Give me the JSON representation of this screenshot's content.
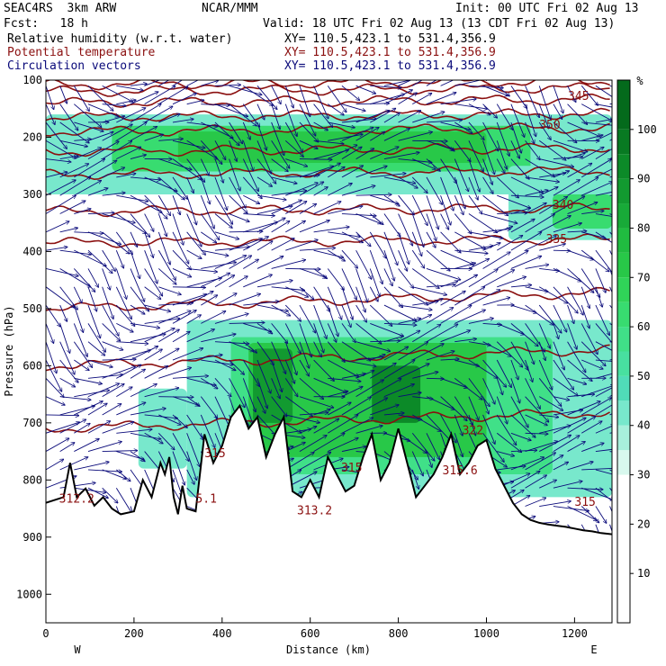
{
  "header": {
    "run": "SEAC4RS  3km ARW",
    "org": "NCAR/MMM",
    "init": "Init: 00 UTC Fri 02 Aug 13",
    "fcst": "Fcst:   18 h",
    "valid": "Valid: 18 UTC Fri 02 Aug 13 (13 CDT Fri 02 Aug 13)"
  },
  "fields": [
    {
      "label": "Relative humidity (w.r.t. water)",
      "xy": "XY= 110.5,423.1 to 531.4,356.9",
      "color": "#000000"
    },
    {
      "label": "Potential temperature",
      "xy": "XY= 110.5,423.1 to 531.4,356.9",
      "color": "#8b1010"
    },
    {
      "label": "Circulation vectors",
      "xy": "XY= 110.5,423.1 to 531.4,356.9",
      "color": "#0a0a7a"
    }
  ],
  "chart_data": {
    "type": "heatmap",
    "xlabel": "Distance (km)",
    "ylabel": "Pressure (hPa)",
    "xlim": [
      0,
      1285
    ],
    "ylim": [
      1050,
      100
    ],
    "x_ticks": [
      0,
      200,
      400,
      600,
      800,
      1000,
      1200
    ],
    "y_ticks": [
      100,
      200,
      300,
      400,
      500,
      600,
      700,
      800,
      900,
      1000
    ],
    "x_end_labels": {
      "left": "W",
      "right": "E"
    },
    "colorbar": {
      "unit": "%",
      "ticks": [
        10,
        20,
        30,
        40,
        50,
        60,
        70,
        80,
        90,
        100
      ],
      "range": [
        0,
        110
      ],
      "bands": [
        {
          "from": 0,
          "to": 30,
          "color": "#ffffff"
        },
        {
          "from": 30,
          "to": 35,
          "color": "#d8f8ee"
        },
        {
          "from": 35,
          "to": 40,
          "color": "#a8f0dc"
        },
        {
          "from": 40,
          "to": 45,
          "color": "#78e8cc"
        },
        {
          "from": 45,
          "to": 50,
          "color": "#50dcb8"
        },
        {
          "from": 50,
          "to": 55,
          "color": "#48e0a0"
        },
        {
          "from": 55,
          "to": 60,
          "color": "#40e088"
        },
        {
          "from": 60,
          "to": 65,
          "color": "#38dc70"
        },
        {
          "from": 65,
          "to": 70,
          "color": "#30d458"
        },
        {
          "from": 70,
          "to": 75,
          "color": "#28c848"
        },
        {
          "from": 75,
          "to": 80,
          "color": "#20bc40"
        },
        {
          "from": 80,
          "to": 85,
          "color": "#18aa38"
        },
        {
          "from": 85,
          "to": 90,
          "color": "#129a30"
        },
        {
          "from": 90,
          "to": 95,
          "color": "#0c8a28"
        },
        {
          "from": 95,
          "to": 100,
          "color": "#087a22"
        },
        {
          "from": 100,
          "to": 110,
          "color": "#046a1c"
        }
      ]
    },
    "rh_regions": [
      {
        "x0": 0,
        "x1": 1285,
        "p0": 160,
        "p1": 300,
        "rh": 40
      },
      {
        "x0": 150,
        "x1": 1100,
        "p0": 180,
        "p1": 260,
        "rh": 60
      },
      {
        "x0": 300,
        "x1": 1000,
        "p0": 190,
        "p1": 245,
        "rh": 70
      },
      {
        "x0": 1050,
        "x1": 1285,
        "p0": 250,
        "p1": 380,
        "rh": 40
      },
      {
        "x0": 1150,
        "x1": 1285,
        "p0": 300,
        "p1": 360,
        "rh": 60
      },
      {
        "x0": 320,
        "x1": 1285,
        "p0": 520,
        "p1": 830,
        "rh": 40
      },
      {
        "x0": 420,
        "x1": 1150,
        "p0": 550,
        "p1": 790,
        "rh": 55
      },
      {
        "x0": 460,
        "x1": 1000,
        "p0": 560,
        "p1": 760,
        "rh": 70
      },
      {
        "x0": 470,
        "x1": 560,
        "p0": 570,
        "p1": 700,
        "rh": 85
      },
      {
        "x0": 740,
        "x1": 850,
        "p0": 600,
        "p1": 700,
        "rh": 90
      },
      {
        "x0": 210,
        "x1": 320,
        "p0": 640,
        "p1": 780,
        "rh": 40
      }
    ],
    "theta_contours": [
      {
        "label": "315",
        "p": 710,
        "label_x": 360,
        "label_p": 760
      },
      {
        "label": "",
        "p": 600
      },
      {
        "label": "",
        "p": 500
      },
      {
        "label": "335",
        "p": 385,
        "label_x": 1135,
        "label_p": 385
      },
      {
        "label": "340",
        "p": 330,
        "label_x": 1150,
        "label_p": 325
      },
      {
        "label": "",
        "p": 265
      },
      {
        "label": "",
        "p": 225
      },
      {
        "label": "350",
        "p": 190,
        "label_x": 1120,
        "label_p": 185
      },
      {
        "label": "",
        "p": 165
      },
      {
        "label": "345",
        "p": 140,
        "label_x": 1185,
        "label_p": 135
      },
      {
        "label": "",
        "p": 120
      },
      {
        "label": "",
        "p": 108
      }
    ],
    "extra_contour_labels": [
      {
        "label": "312.2",
        "x": 30,
        "p": 840
      },
      {
        "label": "5.1",
        "x": 340,
        "p": 840
      },
      {
        "label": "313.2",
        "x": 570,
        "p": 860
      },
      {
        "label": "315",
        "x": 670,
        "p": 785
      },
      {
        "label": "315.6",
        "x": 900,
        "p": 790
      },
      {
        "label": "322",
        "x": 945,
        "p": 720
      },
      {
        "label": "315",
        "x": 1200,
        "p": 845
      }
    ],
    "terrain": {
      "x": [
        0,
        40,
        55,
        70,
        90,
        110,
        130,
        150,
        170,
        200,
        220,
        240,
        260,
        270,
        280,
        290,
        300,
        310,
        320,
        340,
        360,
        380,
        400,
        420,
        440,
        460,
        480,
        500,
        520,
        540,
        560,
        580,
        600,
        620,
        640,
        660,
        680,
        700,
        720,
        740,
        760,
        780,
        800,
        820,
        840,
        860,
        880,
        900,
        920,
        940,
        960,
        980,
        1000,
        1020,
        1040,
        1060,
        1080,
        1100,
        1120,
        1140,
        1160,
        1180,
        1200,
        1220,
        1240,
        1260,
        1285
      ],
      "p": [
        840,
        830,
        770,
        830,
        815,
        845,
        830,
        850,
        860,
        855,
        800,
        830,
        770,
        790,
        760,
        830,
        860,
        810,
        850,
        855,
        720,
        770,
        740,
        690,
        670,
        710,
        690,
        760,
        720,
        690,
        820,
        830,
        800,
        830,
        760,
        790,
        820,
        810,
        760,
        720,
        800,
        770,
        710,
        770,
        830,
        810,
        790,
        760,
        720,
        790,
        770,
        740,
        730,
        780,
        810,
        840,
        860,
        870,
        875,
        878,
        880,
        882,
        885,
        888,
        890,
        893,
        895
      ]
    },
    "vector_origins": {
      "x_start": 0,
      "x_end": 1285,
      "x_step": 32,
      "p_start": 110,
      "p_end": 880,
      "p_step": 32
    }
  }
}
